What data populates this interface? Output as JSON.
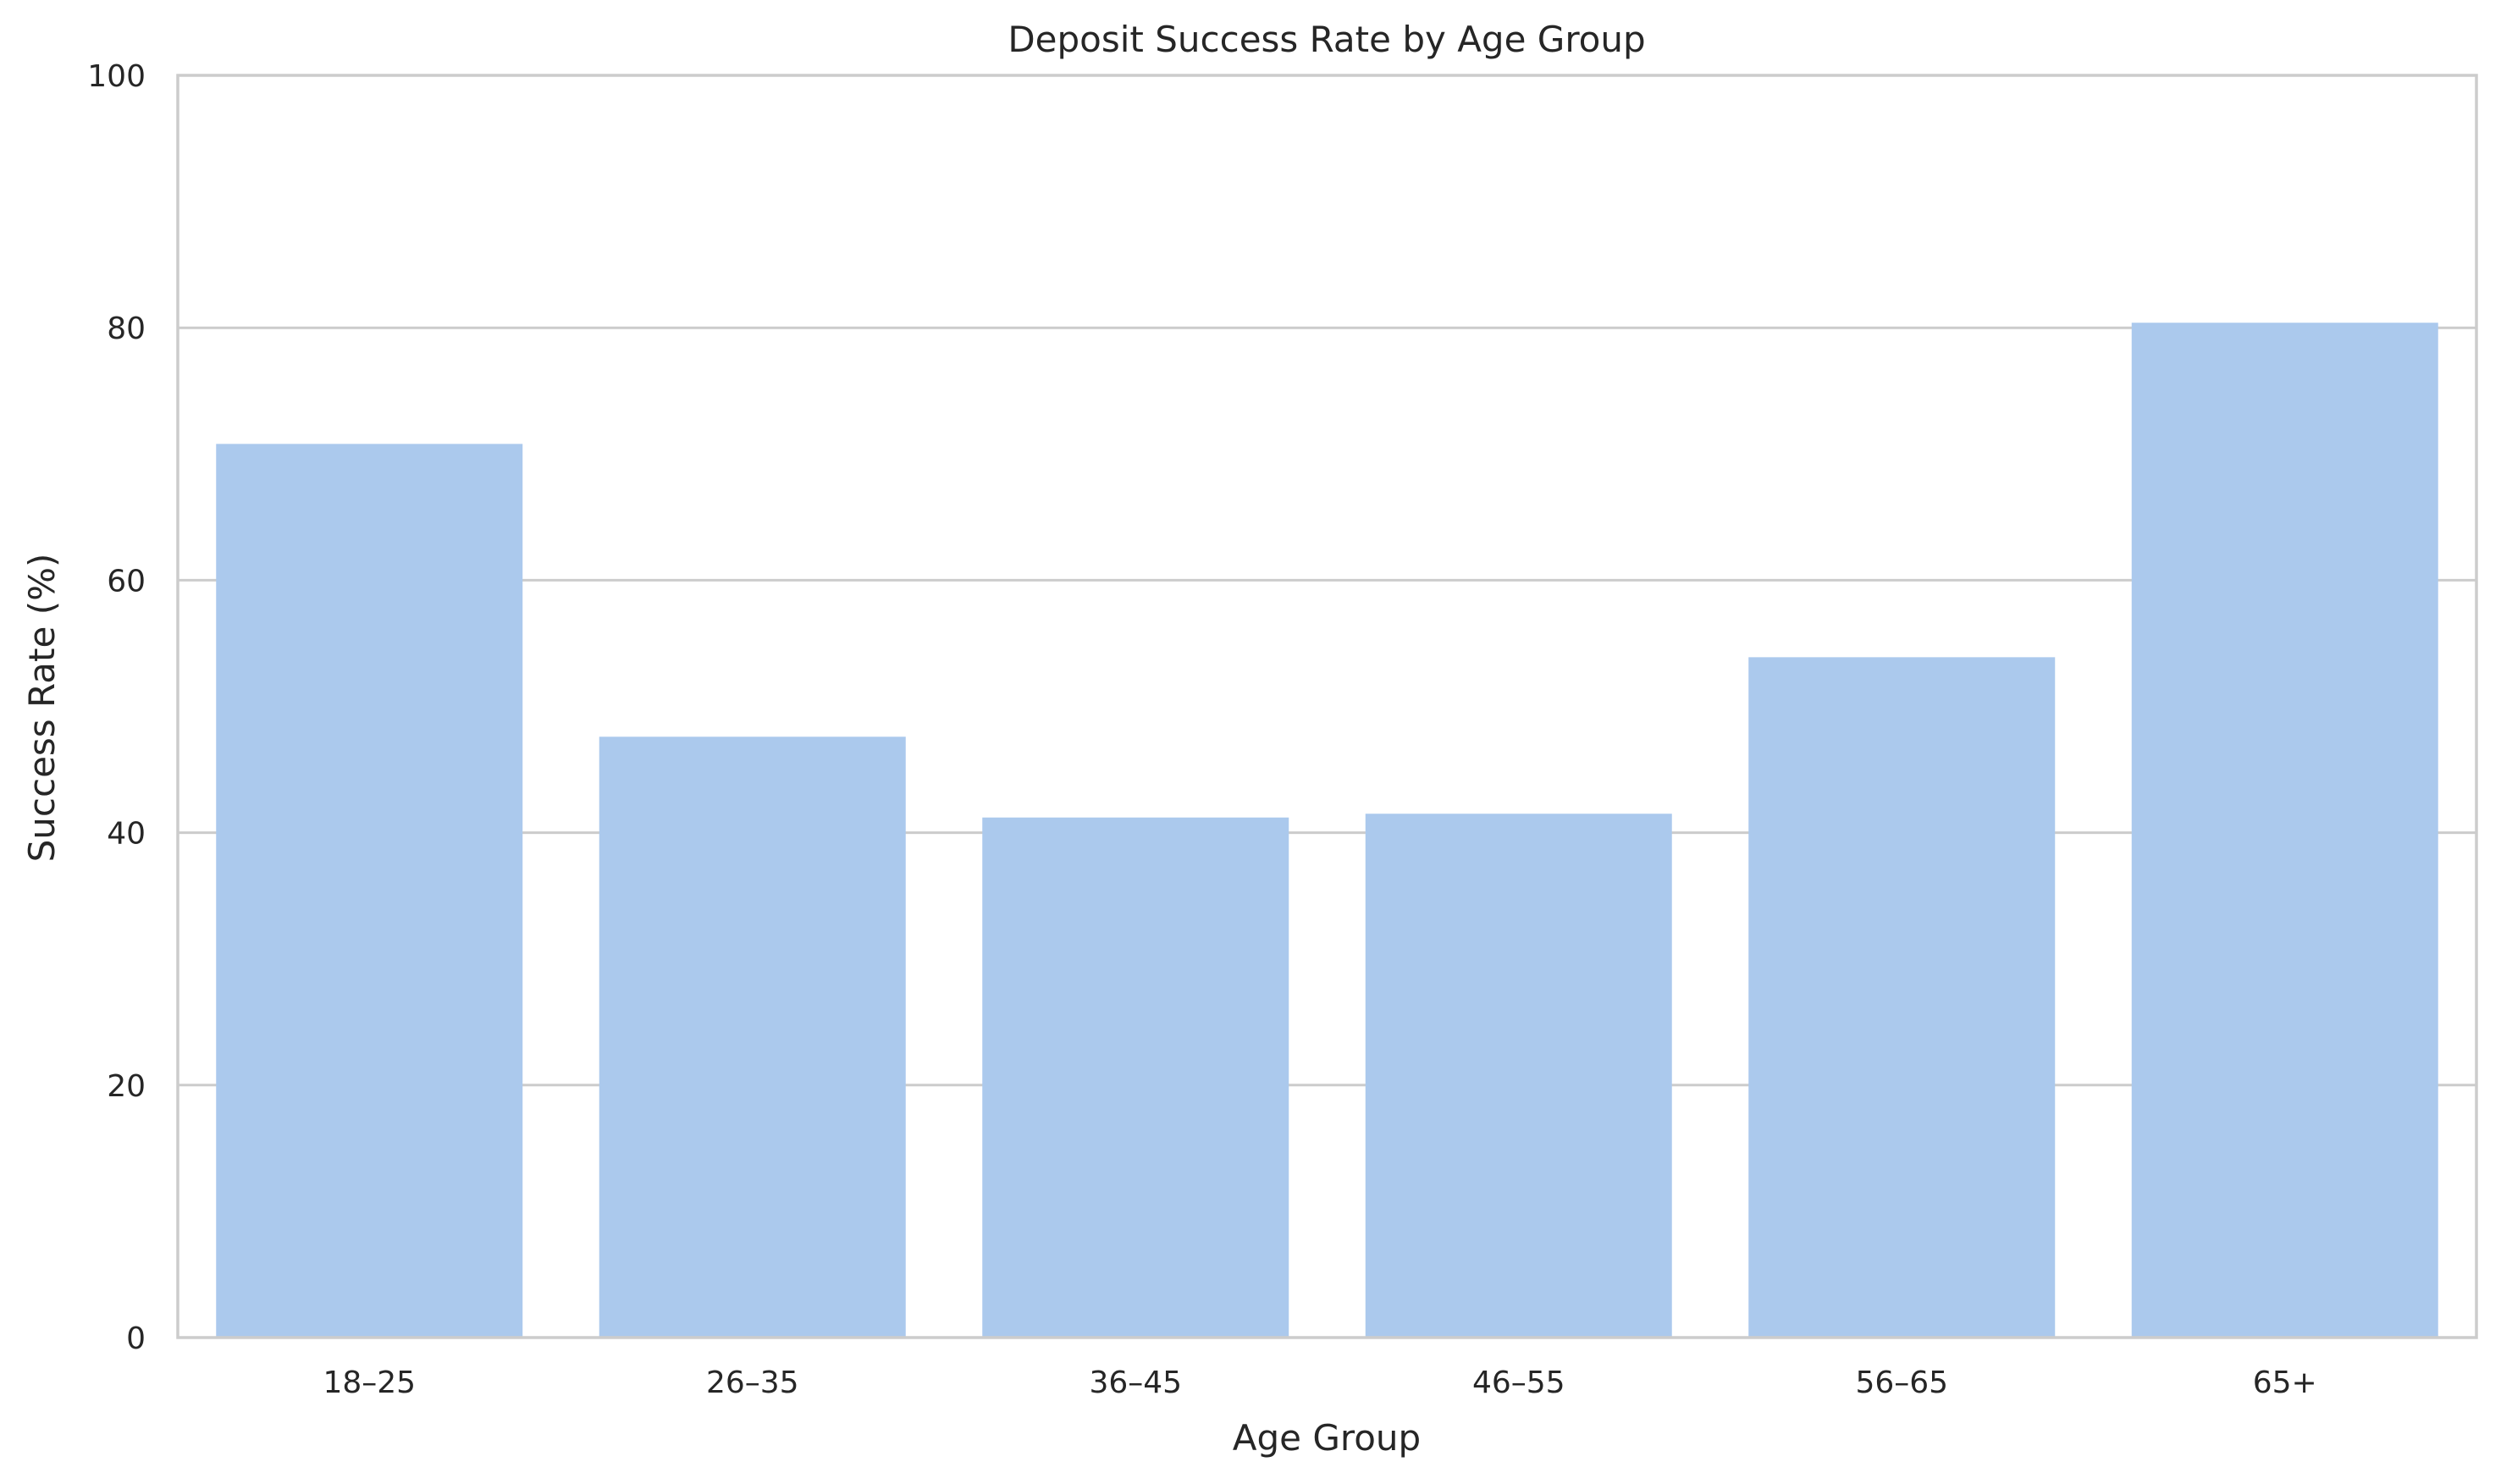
{
  "chart_data": {
    "type": "bar",
    "title": "Deposit Success Rate by Age Group",
    "xlabel": "Age Group",
    "ylabel": "Success Rate (%)",
    "categories": [
      "18–25",
      "26–35",
      "36–45",
      "46–55",
      "56–65",
      "65+"
    ],
    "values": [
      70.8,
      47.6,
      41.2,
      41.5,
      53.9,
      80.4
    ],
    "ylim": [
      0,
      100
    ],
    "yticks": [
      0,
      20,
      40,
      60,
      80,
      100
    ],
    "grid": "horizontal",
    "bar_color": "#abc9ed",
    "grid_color": "#cccccc",
    "text_color": "#262626"
  }
}
